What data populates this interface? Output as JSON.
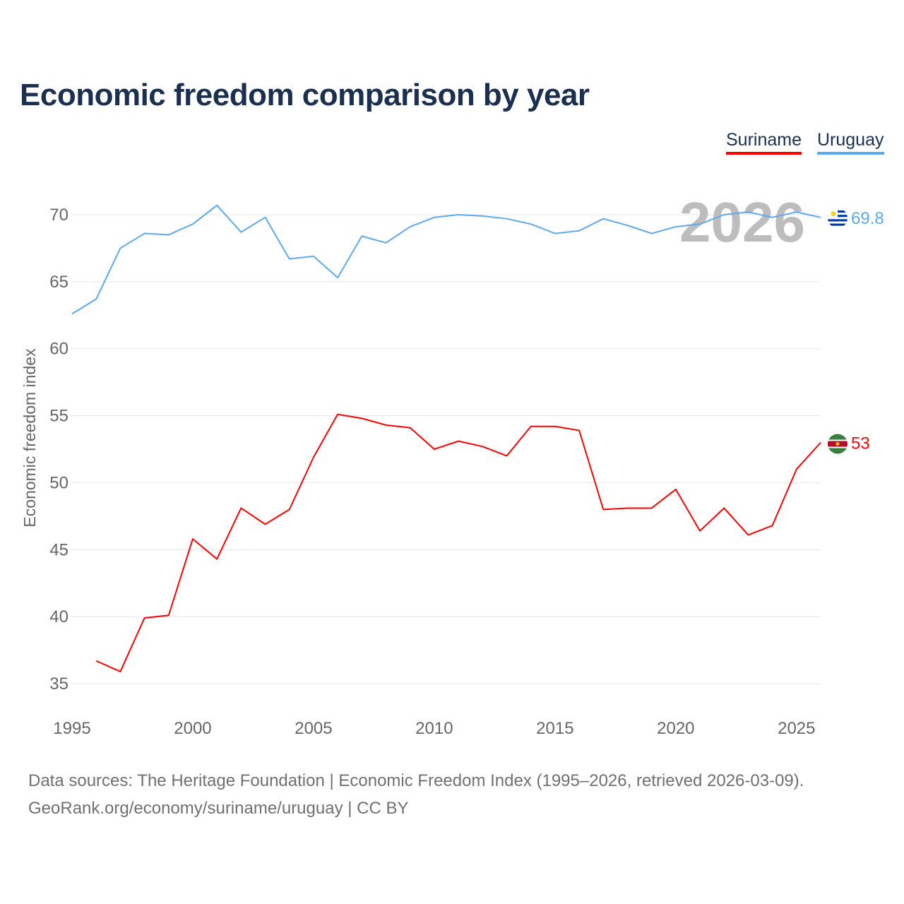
{
  "title": "Economic freedom comparison by year",
  "legend": [
    "Suriname",
    "Uruguay"
  ],
  "year_watermark": "2026",
  "footer": {
    "line1": "Data sources: The Heritage Foundation | Economic Freedom Index (1995–2026, retrieved 2026-03-09).",
    "line2": "GeoRank.org/economy/suriname/uruguay | CC BY"
  },
  "chart_data": {
    "type": "line",
    "title": "Economic freedom comparison by year",
    "xlabel": "",
    "ylabel": "Economic freedom index",
    "xlim": [
      1995,
      2026
    ],
    "ylim": [
      33,
      72
    ],
    "xticks": [
      1995,
      2000,
      2005,
      2010,
      2015,
      2020,
      2025
    ],
    "yticks": [
      35,
      40,
      45,
      50,
      55,
      60,
      65,
      70
    ],
    "grid": true,
    "legend_position": "top-right",
    "series": [
      {
        "name": "Suriname",
        "color": "#ff0000",
        "end_label": "53",
        "x": [
          1996,
          1997,
          1998,
          1999,
          2000,
          2001,
          2002,
          2003,
          2004,
          2005,
          2006,
          2007,
          2008,
          2009,
          2010,
          2011,
          2012,
          2013,
          2014,
          2015,
          2016,
          2017,
          2018,
          2019,
          2020,
          2021,
          2022,
          2023,
          2024,
          2025,
          2026
        ],
        "values": [
          36.7,
          35.9,
          39.9,
          40.1,
          45.8,
          44.3,
          48.1,
          46.9,
          48.0,
          51.9,
          55.1,
          54.8,
          54.3,
          54.1,
          52.5,
          53.1,
          52.7,
          52.0,
          54.2,
          54.2,
          53.9,
          48.0,
          48.1,
          48.1,
          49.5,
          46.4,
          48.1,
          46.1,
          46.8,
          51.0,
          53.0
        ]
      },
      {
        "name": "Uruguay",
        "color": "#5ea8ef",
        "end_label": "69.8",
        "x": [
          1995,
          1996,
          1997,
          1998,
          1999,
          2000,
          2001,
          2002,
          2003,
          2004,
          2005,
          2006,
          2007,
          2008,
          2009,
          2010,
          2011,
          2012,
          2013,
          2014,
          2015,
          2016,
          2017,
          2018,
          2019,
          2020,
          2021,
          2022,
          2023,
          2024,
          2025,
          2026
        ],
        "values": [
          62.6,
          63.7,
          67.5,
          68.6,
          68.5,
          69.3,
          70.7,
          68.7,
          69.8,
          66.7,
          66.9,
          65.3,
          68.4,
          67.9,
          69.1,
          69.8,
          70.0,
          69.9,
          69.7,
          69.3,
          68.6,
          68.8,
          69.7,
          69.2,
          68.6,
          69.1,
          69.3,
          70.0,
          70.2,
          69.8,
          70.2,
          69.8
        ]
      }
    ]
  }
}
